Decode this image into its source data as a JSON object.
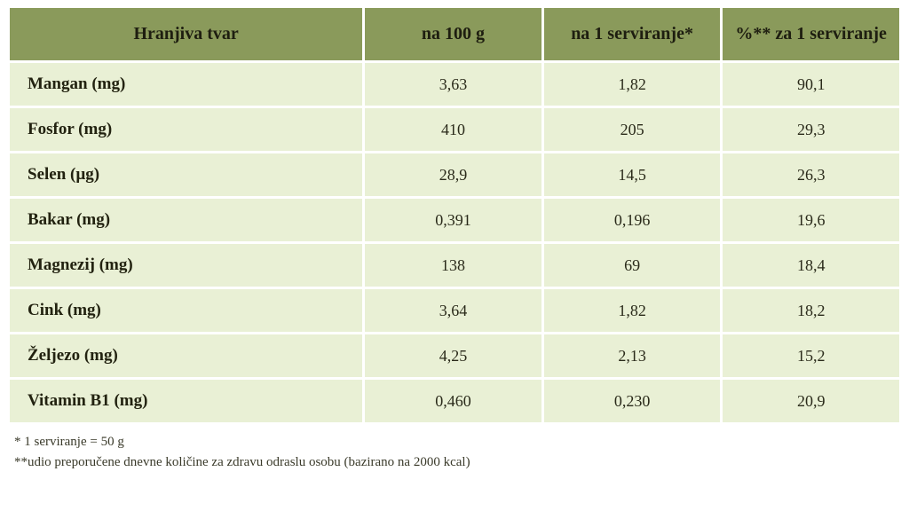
{
  "table": {
    "header_bg": "#8a9a5b",
    "row_bg": "#e9f0d5",
    "text_color": "#2a2a1a",
    "columns": [
      "Hranjiva tvar",
      "na 100 g",
      "na 1 serviranje*",
      "%** za 1 serviranje"
    ],
    "rows": [
      {
        "nutrient": "Mangan (mg)",
        "per100": "3,63",
        "perServ": "1,82",
        "pct": "90,1"
      },
      {
        "nutrient": "Fosfor (mg)",
        "per100": "410",
        "perServ": "205",
        "pct": "29,3"
      },
      {
        "nutrient": "Selen (µg)",
        "per100": "28,9",
        "perServ": "14,5",
        "pct": "26,3"
      },
      {
        "nutrient": "Bakar (mg)",
        "per100": "0,391",
        "perServ": "0,196",
        "pct": "19,6"
      },
      {
        "nutrient": "Magnezij (mg)",
        "per100": "138",
        "perServ": "69",
        "pct": "18,4"
      },
      {
        "nutrient": "Cink (mg)",
        "per100": "3,64",
        "perServ": "1,82",
        "pct": "18,2"
      },
      {
        "nutrient": "Željezo (mg)",
        "per100": "4,25",
        "perServ": "2,13",
        "pct": "15,2"
      },
      {
        "nutrient": "Vitamin B1 (mg)",
        "per100": "0,460",
        "perServ": "0,230",
        "pct": "20,9"
      }
    ]
  },
  "footnotes": {
    "line1": "* 1 serviranje = 50 g",
    "line2": "**udio preporučene dnevne količine za zdravu odraslu osobu (bazirano na 2000 kcal)"
  }
}
